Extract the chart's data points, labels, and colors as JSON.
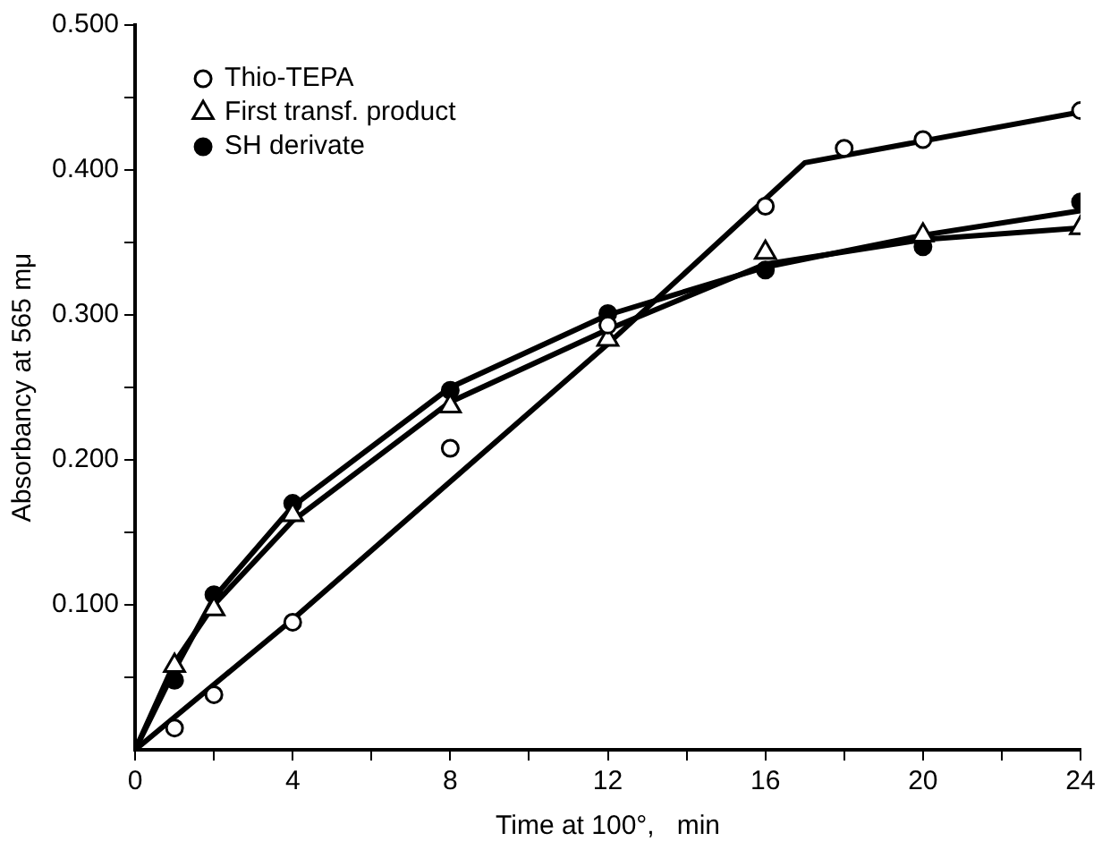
{
  "chart_data": {
    "type": "scatter",
    "xlabel": "Time at 100°,   min",
    "ylabel": "Absorbancy at 565 mμ",
    "xlim": [
      0,
      24
    ],
    "ylim": [
      0,
      0.5
    ],
    "xticks": [
      {
        "value": 0,
        "label": "0"
      },
      {
        "value": 2,
        "label": null
      },
      {
        "value": 4,
        "label": "4"
      },
      {
        "value": 6,
        "label": null
      },
      {
        "value": 8,
        "label": "8"
      },
      {
        "value": 10,
        "label": null
      },
      {
        "value": 12,
        "label": "12"
      },
      {
        "value": 14,
        "label": null
      },
      {
        "value": 16,
        "label": "16"
      },
      {
        "value": 18,
        "label": null
      },
      {
        "value": 20,
        "label": "20"
      },
      {
        "value": 22,
        "label": null
      },
      {
        "value": 24,
        "label": "24"
      }
    ],
    "yticks": [
      {
        "value": 0.05,
        "label": null
      },
      {
        "value": 0.1,
        "label": "0.100"
      },
      {
        "value": 0.15,
        "label": null
      },
      {
        "value": 0.2,
        "label": "0.200"
      },
      {
        "value": 0.25,
        "label": null
      },
      {
        "value": 0.3,
        "label": "0.300"
      },
      {
        "value": 0.35,
        "label": null
      },
      {
        "value": 0.4,
        "label": "0.400"
      },
      {
        "value": 0.45,
        "label": null
      },
      {
        "value": 0.5,
        "label": "0.500"
      }
    ],
    "grid": false,
    "legend": "top left",
    "series": [
      {
        "name": "Thio-TEPA",
        "color": "#ffffff",
        "marker": "circle",
        "x": [
          1,
          2,
          4,
          8,
          12,
          16,
          18,
          20,
          24
        ],
        "values": [
          0.015,
          0.038,
          0.088,
          0.208,
          0.293,
          0.375,
          0.415,
          0.421,
          0.441
        ]
      },
      {
        "name": "First transf. product",
        "color": "#ffffff",
        "marker": "triangle",
        "x": [
          1,
          2,
          4,
          8,
          12,
          16,
          20,
          24
        ],
        "values": [
          0.058,
          0.097,
          0.162,
          0.237,
          0.283,
          0.343,
          0.355,
          0.36
        ]
      },
      {
        "name": "SH derivate",
        "color": "#000000",
        "marker": "circle",
        "x": [
          1,
          2,
          4,
          8,
          12,
          16,
          20,
          24
        ],
        "values": [
          0.048,
          0.107,
          0.17,
          0.248,
          0.301,
          0.331,
          0.347,
          0.378
        ]
      },
      {
        "type": "line",
        "color": "#000000",
        "marker": "none",
        "x": [
          0,
          4,
          8,
          12,
          17,
          24
        ],
        "values": [
          0,
          0.09,
          0.185,
          0.28,
          0.405,
          0.44
        ]
      },
      {
        "type": "line",
        "color": "#000000",
        "marker": "none",
        "x": [
          0,
          1,
          2,
          4,
          8,
          12,
          16,
          20,
          24
        ],
        "values": [
          0,
          0.06,
          0.1,
          0.158,
          0.24,
          0.29,
          0.335,
          0.352,
          0.36
        ]
      },
      {
        "type": "line",
        "color": "#000000",
        "marker": "none",
        "x": [
          0,
          1,
          2,
          4,
          8,
          12,
          16,
          20,
          24
        ],
        "values": [
          0,
          0.055,
          0.105,
          0.168,
          0.25,
          0.3,
          0.333,
          0.355,
          0.372
        ]
      }
    ]
  }
}
